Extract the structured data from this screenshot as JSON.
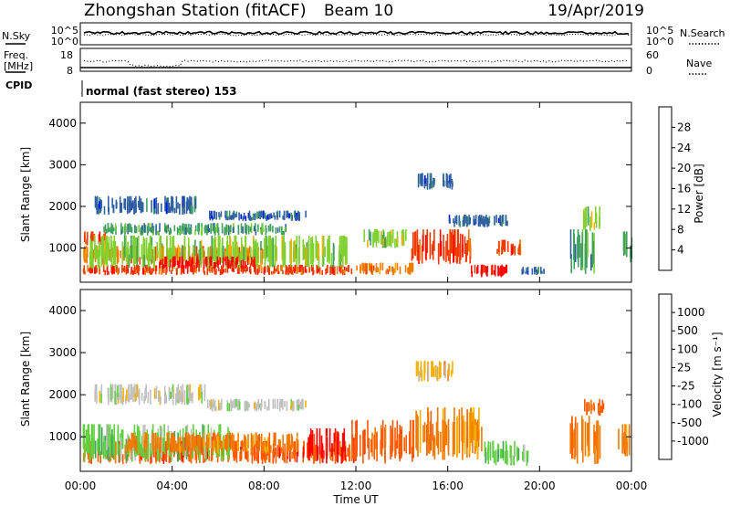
{
  "header": {
    "station": "Zhongshan Station (fitACF)",
    "beam": "Beam 10",
    "date": "19/Apr/2019"
  },
  "top_panels": {
    "nsky_label": "N.Sky",
    "nsky_ticks": [
      "10^5",
      "10^0"
    ],
    "nsearch_label": "N.Search",
    "nsearch_ticks": [
      "10^5",
      "10^0"
    ],
    "freq_label_1": "Freq.",
    "freq_label_2": "[MHz]",
    "freq_ticks": [
      "18",
      "8"
    ],
    "nave_label": "Nave",
    "nave_ticks": [
      "60",
      "0"
    ],
    "cpid_label": "CPID",
    "cpid_text": "normal (fast stereo) 153"
  },
  "chart_data": [
    {
      "type": "heatmap",
      "name": "power",
      "ylabel": "Slant Range [km]",
      "xlabel": "Time UT",
      "ylim": [
        180,
        4500
      ],
      "yticks": [
        "1000",
        "2000",
        "3000",
        "4000"
      ],
      "xticks": [
        "00:00",
        "04:00",
        "08:00",
        "12:00",
        "16:00",
        "20:00",
        "00:00"
      ],
      "colorbar": {
        "label": "Power [dB]",
        "ticks": [
          "28",
          "24",
          "20",
          "16",
          "12",
          "8",
          "4"
        ],
        "colors": [
          "#ff0000",
          "#f03a00",
          "#f07a00",
          "#f5b000",
          "#80d030",
          "#40a060",
          "#3060a0",
          "#0010ff"
        ]
      },
      "blobs": [
        {
          "t0": 0.1,
          "t1": 11.8,
          "r0": 350,
          "r1": 600,
          "c": 1
        },
        {
          "t0": 0.1,
          "t1": 8.0,
          "r0": 600,
          "r1": 1050,
          "c": 2
        },
        {
          "t0": 0.1,
          "t1": 1.2,
          "r0": 1050,
          "r1": 1400,
          "c": 1
        },
        {
          "t0": 0.3,
          "t1": 11.6,
          "r0": 500,
          "r1": 1300,
          "c": 4
        },
        {
          "t0": 1.0,
          "t1": 9.0,
          "r0": 1300,
          "r1": 1600,
          "c": 5
        },
        {
          "t0": 0.6,
          "t1": 5.0,
          "r0": 1800,
          "r1": 2250,
          "c": 6
        },
        {
          "t0": 5.5,
          "t1": 9.8,
          "r0": 1650,
          "r1": 1900,
          "c": 6
        },
        {
          "t0": 3.4,
          "t1": 7.6,
          "r0": 500,
          "r1": 800,
          "c": 0
        },
        {
          "t0": 12.0,
          "t1": 14.6,
          "r0": 350,
          "r1": 650,
          "c": 2
        },
        {
          "t0": 12.3,
          "t1": 14.2,
          "r0": 1000,
          "r1": 1450,
          "c": 4
        },
        {
          "t0": 14.4,
          "t1": 17.0,
          "r0": 600,
          "r1": 1450,
          "c": 1
        },
        {
          "t0": 14.6,
          "t1": 16.2,
          "r0": 2400,
          "r1": 2800,
          "c": 6
        },
        {
          "t0": 17.0,
          "t1": 18.6,
          "r0": 300,
          "r1": 600,
          "c": 0
        },
        {
          "t0": 18.1,
          "t1": 19.2,
          "r0": 800,
          "r1": 1200,
          "c": 1
        },
        {
          "t0": 16.0,
          "t1": 18.6,
          "r0": 1500,
          "r1": 1800,
          "c": 6
        },
        {
          "t0": 21.3,
          "t1": 22.4,
          "r0": 350,
          "r1": 1450,
          "c": 5
        },
        {
          "t0": 21.8,
          "t1": 22.6,
          "r0": 1400,
          "r1": 2000,
          "c": 4
        },
        {
          "t0": 23.6,
          "t1": 24.0,
          "r0": 600,
          "r1": 1400,
          "c": 5
        },
        {
          "t0": 19.2,
          "t1": 20.2,
          "r0": 350,
          "r1": 550,
          "c": 6
        }
      ]
    },
    {
      "type": "heatmap",
      "name": "velocity",
      "ylabel": "Slant Range [km]",
      "xlabel": "Time UT",
      "ylim": [
        180,
        4500
      ],
      "yticks": [
        "1000",
        "2000",
        "3000",
        "4000"
      ],
      "xticks": [
        "00:00",
        "04:00",
        "08:00",
        "12:00",
        "16:00",
        "20:00",
        "00:00"
      ],
      "colorbar": {
        "label": "Velocity [m s⁻¹]",
        "ticks": [
          "1000",
          "500",
          "100",
          "25",
          "-25",
          "-100",
          "-500",
          "-1000"
        ],
        "colors": [
          "#0a40c0",
          "#2c6e9c",
          "#40a060",
          "#60d040",
          "#c0c0c0",
          "#f5b000",
          "#f07a00",
          "#ff5a00",
          "#ff0000"
        ]
      },
      "blobs": [
        {
          "t0": 0.1,
          "t1": 11.8,
          "r0": 350,
          "r1": 900,
          "c": 7
        },
        {
          "t0": 0.1,
          "t1": 6.5,
          "r0": 400,
          "r1": 1300,
          "c": 3
        },
        {
          "t0": 2.0,
          "t1": 9.5,
          "r0": 600,
          "r1": 1100,
          "c": 6
        },
        {
          "t0": 0.6,
          "t1": 5.5,
          "r0": 1750,
          "r1": 2250,
          "c": 4
        },
        {
          "t0": 5.5,
          "t1": 9.8,
          "r0": 1600,
          "r1": 1900,
          "c": 4
        },
        {
          "t0": 9.8,
          "t1": 11.5,
          "r0": 350,
          "r1": 1200,
          "c": 8
        },
        {
          "t0": 11.8,
          "t1": 14.5,
          "r0": 350,
          "r1": 1400,
          "c": 7
        },
        {
          "t0": 14.4,
          "t1": 17.5,
          "r0": 450,
          "r1": 1700,
          "c": 6
        },
        {
          "t0": 14.6,
          "t1": 16.2,
          "r0": 2300,
          "r1": 2800,
          "c": 5
        },
        {
          "t0": 17.5,
          "t1": 19.5,
          "r0": 300,
          "r1": 900,
          "c": 3
        },
        {
          "t0": 21.3,
          "t1": 22.6,
          "r0": 350,
          "r1": 1500,
          "c": 6
        },
        {
          "t0": 21.8,
          "t1": 22.8,
          "r0": 1500,
          "r1": 1900,
          "c": 7
        },
        {
          "t0": 23.4,
          "t1": 24.0,
          "r0": 500,
          "r1": 1300,
          "c": 6
        }
      ]
    }
  ]
}
